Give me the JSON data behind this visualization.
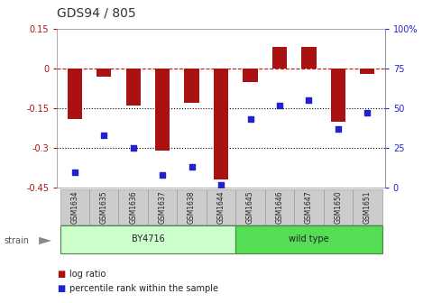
{
  "title": "GDS94 / 805",
  "samples": [
    "GSM1634",
    "GSM1635",
    "GSM1636",
    "GSM1637",
    "GSM1638",
    "GSM1644",
    "GSM1645",
    "GSM1646",
    "GSM1647",
    "GSM1650",
    "GSM1651"
  ],
  "log_ratio": [
    -0.19,
    -0.03,
    -0.14,
    -0.31,
    -0.13,
    -0.42,
    -0.05,
    0.08,
    0.08,
    -0.2,
    -0.02
  ],
  "percentile_rank": [
    10,
    33,
    25,
    8,
    13,
    2,
    43,
    52,
    55,
    37,
    47
  ],
  "bar_color": "#aa1111",
  "dot_color": "#2222cc",
  "ylim_left": [
    -0.45,
    0.15
  ],
  "ylim_right": [
    0,
    100
  ],
  "yticks_left": [
    -0.45,
    -0.3,
    -0.15,
    0,
    0.15
  ],
  "ytick_labels_left": [
    "-0.45",
    "-0.3",
    "-0.15",
    "0",
    "0.15"
  ],
  "yticks_right": [
    0,
    25,
    50,
    75,
    100
  ],
  "ytick_labels_right": [
    "0",
    "25",
    "50",
    "75",
    "100%"
  ],
  "hline_y": [
    0,
    -0.15,
    -0.3
  ],
  "hline_styles": [
    "dashed",
    "dotted",
    "dotted"
  ],
  "hline_colors": [
    "#cc1111",
    "#000000",
    "#000000"
  ],
  "group_by4716_color": "#ccffcc",
  "group_wildtype_color": "#55dd55",
  "group_border_color": "#448844",
  "groups": [
    {
      "label": "BY4716",
      "start": 0,
      "end": 5
    },
    {
      "label": "wild type",
      "start": 6,
      "end": 10
    }
  ],
  "strain_label": "strain",
  "legend_items": [
    "log ratio",
    "percentile rank within the sample"
  ],
  "legend_colors": [
    "#aa1111",
    "#2222cc"
  ],
  "bg_color": "#ffffff",
  "plot_bg_color": "#ffffff",
  "sample_box_color": "#cccccc",
  "sample_box_edge": "#999999",
  "bar_width": 0.5,
  "tick_fontsize": 7,
  "title_fontsize": 10,
  "label_fontsize": 5.5,
  "group_fontsize": 7,
  "legend_fontsize": 7
}
